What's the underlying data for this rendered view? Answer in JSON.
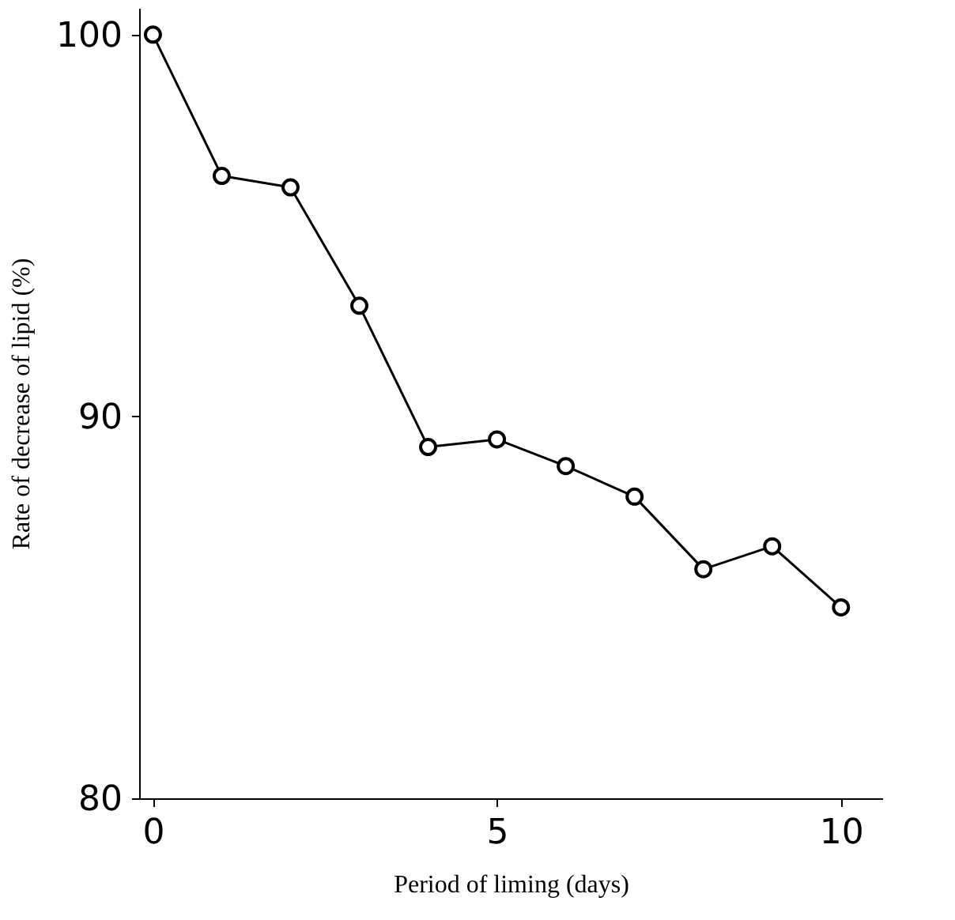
{
  "chart_data": {
    "type": "line",
    "xlabel": "Period of liming (days)",
    "ylabel": "Rate of decrease of lipid (%)",
    "x": [
      0,
      1,
      2,
      3,
      4,
      5,
      6,
      7,
      8,
      9,
      10
    ],
    "series": [
      {
        "color": "#000000",
        "values": [
          100,
          96.3,
          96.0,
          92.9,
          89.2,
          89.4,
          88.7,
          87.9,
          86.0,
          86.6,
          85.0
        ]
      }
    ],
    "xlim": [
      -0.2,
      10.6
    ],
    "ylim": [
      80,
      100.7
    ],
    "xticks": [
      0,
      5,
      10
    ],
    "yticks": [
      80,
      90,
      100
    ],
    "marker": "circle",
    "line_style": "solid",
    "grid": false
  }
}
